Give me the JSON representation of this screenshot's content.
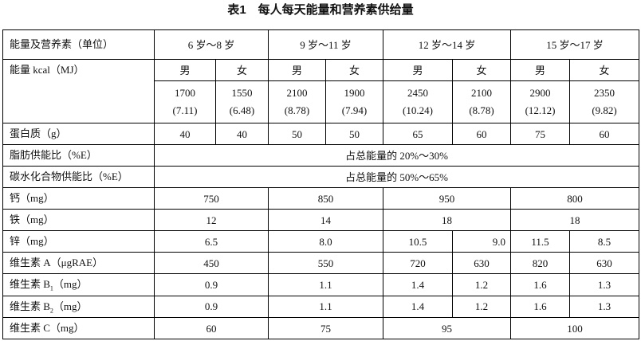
{
  "title": "表1　每人每天能量和营养素供给量",
  "header": {
    "label": "能量及营养素（单位）",
    "age_groups": [
      "6 岁～8 岁",
      "9 岁～11 岁",
      "12 岁～14 岁",
      "15 岁～17 岁"
    ]
  },
  "energy": {
    "label": "能量 kcal（MJ）",
    "sexes": [
      "男",
      "女",
      "男",
      "女",
      "男",
      "女",
      "男",
      "女"
    ],
    "kcal": [
      "1700",
      "1550",
      "2100",
      "1900",
      "2450",
      "2100",
      "2900",
      "2350"
    ],
    "mj": [
      "(7.11)",
      "(6.48)",
      "(8.78)",
      "(7.94)",
      "(10.24)",
      "(8.78)",
      "(12.12)",
      "(9.82)"
    ]
  },
  "protein": {
    "label": "蛋白质（g）",
    "values": [
      "40",
      "40",
      "50",
      "50",
      "65",
      "60",
      "75",
      "60"
    ]
  },
  "fat": {
    "label": "脂肪供能比（%E）",
    "value": "占总能量的 20%～30%"
  },
  "carb": {
    "label": "碳水化合物供能比（%E）",
    "value": "占总能量的 50%～65%"
  },
  "calcium": {
    "label": "钙（mg）",
    "values": [
      "750",
      "850",
      "950",
      "800"
    ]
  },
  "iron": {
    "label": "铁（mg）",
    "values": [
      "12",
      "14",
      "18",
      "18"
    ]
  },
  "zinc": {
    "label": "锌（mg）",
    "values": [
      "6.5",
      "8.0",
      "10.5",
      "9.0",
      "11.5",
      "8.5"
    ]
  },
  "vita": {
    "label": "维生素 A（μgRAE）",
    "values": [
      "450",
      "550",
      "720",
      "630",
      "820",
      "630"
    ]
  },
  "vitb1": {
    "label_prefix": "维生素 B",
    "label_sub": "1",
    "label_suffix": "（mg）",
    "values": [
      "0.9",
      "1.1",
      "1.4",
      "1.2",
      "1.6",
      "1.3"
    ]
  },
  "vitb2": {
    "label_prefix": "维生素 B",
    "label_sub": "2",
    "label_suffix": "（mg）",
    "values": [
      "0.9",
      "1.1",
      "1.4",
      "1.2",
      "1.6",
      "1.3"
    ]
  },
  "vitc": {
    "label": "维生素 C（mg）",
    "values": [
      "60",
      "75",
      "95",
      "100"
    ]
  }
}
